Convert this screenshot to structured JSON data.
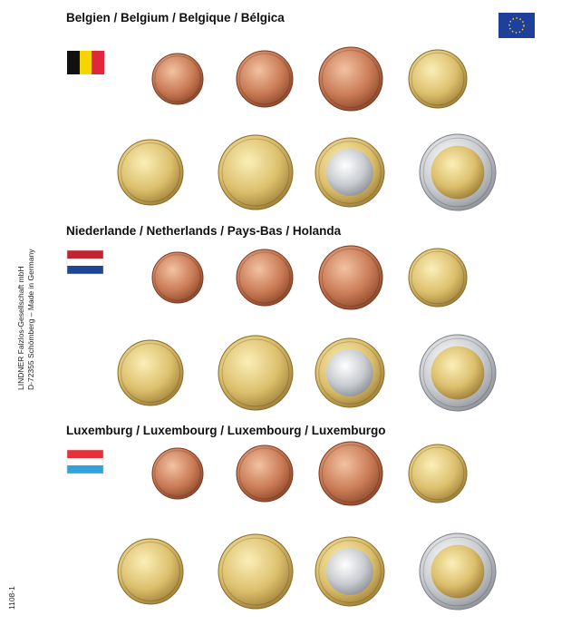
{
  "sections": [
    {
      "title": "Belgien / Belgium / Belgique / Bélgica"
    },
    {
      "title": "Niederlande / Netherlands / Pays-Bas / Holanda"
    },
    {
      "title": "Luxemburg / Luxembourg / Luxembourg / Luxemburgo"
    }
  ],
  "imprint": [
    "LINDNER Falzlos-Gesellschaft mbH",
    "D-72355 Schömberg – Made in Germany"
  ],
  "page_number": "1108-1"
}
